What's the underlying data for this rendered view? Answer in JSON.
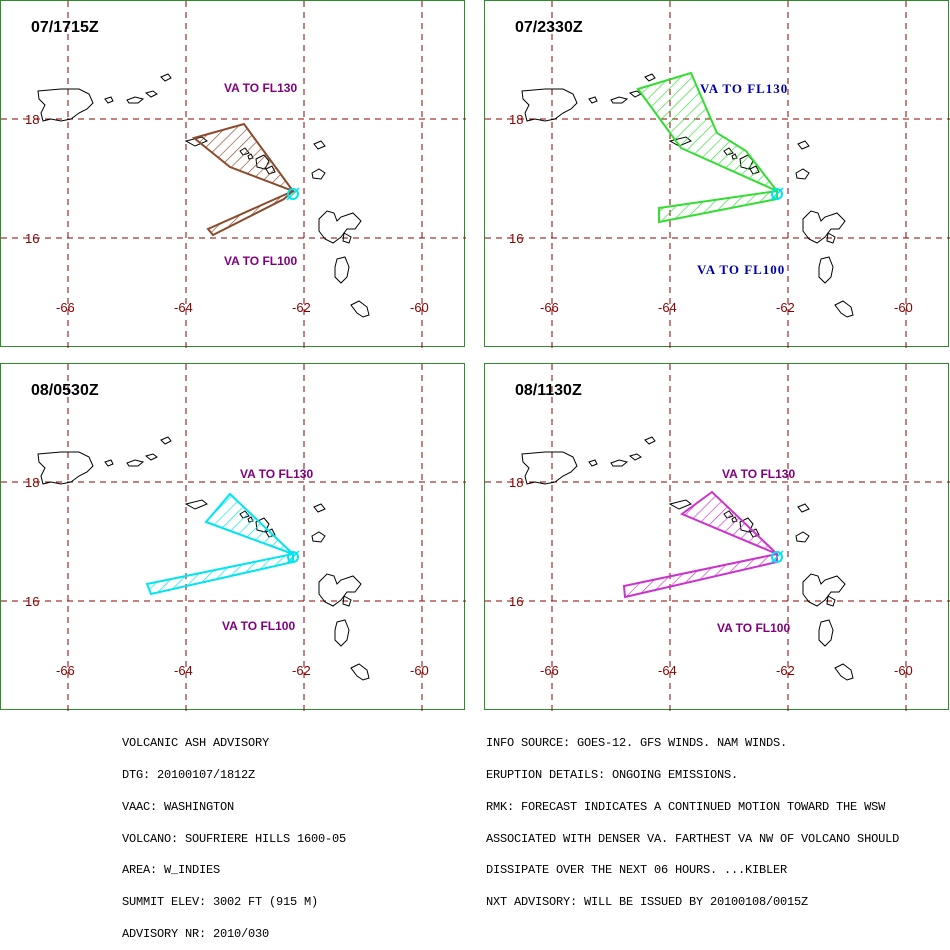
{
  "colors": {
    "panel_border": "#2e8b2e",
    "grid": "#8b0000",
    "coast": "#000000",
    "volcano": "#00e5ee"
  },
  "map": {
    "lat_labels": [
      "18",
      "16"
    ],
    "lon_labels": [
      "-66",
      "-64",
      "-62",
      "-60"
    ]
  },
  "panels": [
    {
      "time": "07/1715Z",
      "ash_color": "#8b4a2b",
      "upper_label": "VA TO FL130",
      "lower_label": "VA TO FL100",
      "label_color": "#800080",
      "serif_labels": false
    },
    {
      "time": "07/2330Z",
      "ash_color": "#33dd33",
      "upper_label": "VA TO FL130",
      "lower_label": "VA TO FL100",
      "label_color": "#0000aa",
      "serif_labels": true
    },
    {
      "time": "08/0530Z",
      "ash_color": "#00e5ee",
      "upper_label": "VA TO FL130",
      "lower_label": "VA TO FL100",
      "label_color": "#800080",
      "serif_labels": false
    },
    {
      "time": "08/1130Z",
      "ash_color": "#cc33cc",
      "upper_label": "VA TO FL130",
      "lower_label": "VA TO FL100",
      "label_color": "#800080",
      "serif_labels": false
    }
  ],
  "advisory_left": [
    "VOLCANIC ASH ADVISORY",
    "DTG: 20100107/1812Z",
    "VAAC: WASHINGTON",
    "VOLCANO: SOUFRIERE HILLS 1600-05",
    "AREA: W_INDIES",
    "SUMMIT ELEV: 3002 FT (915 M)",
    "ADVISORY NR: 2010/030"
  ],
  "advisory_right": [
    "INFO SOURCE: GOES-12. GFS WINDS. NAM WINDS.",
    "ERUPTION DETAILS: ONGOING EMISSIONS.",
    "RMK: FORECAST INDICATES A CONTINUED MOTION TOWARD THE WSW",
    "ASSOCIATED WITH DENSER VA. FARTHEST VA NW OF VOLCANO SHOULD",
    "DISSIPATE OVER THE NEXT 06 HOURS. ...KIBLER",
    "NXT ADVISORY: WILL BE ISSUED BY 20100108/0015Z"
  ]
}
